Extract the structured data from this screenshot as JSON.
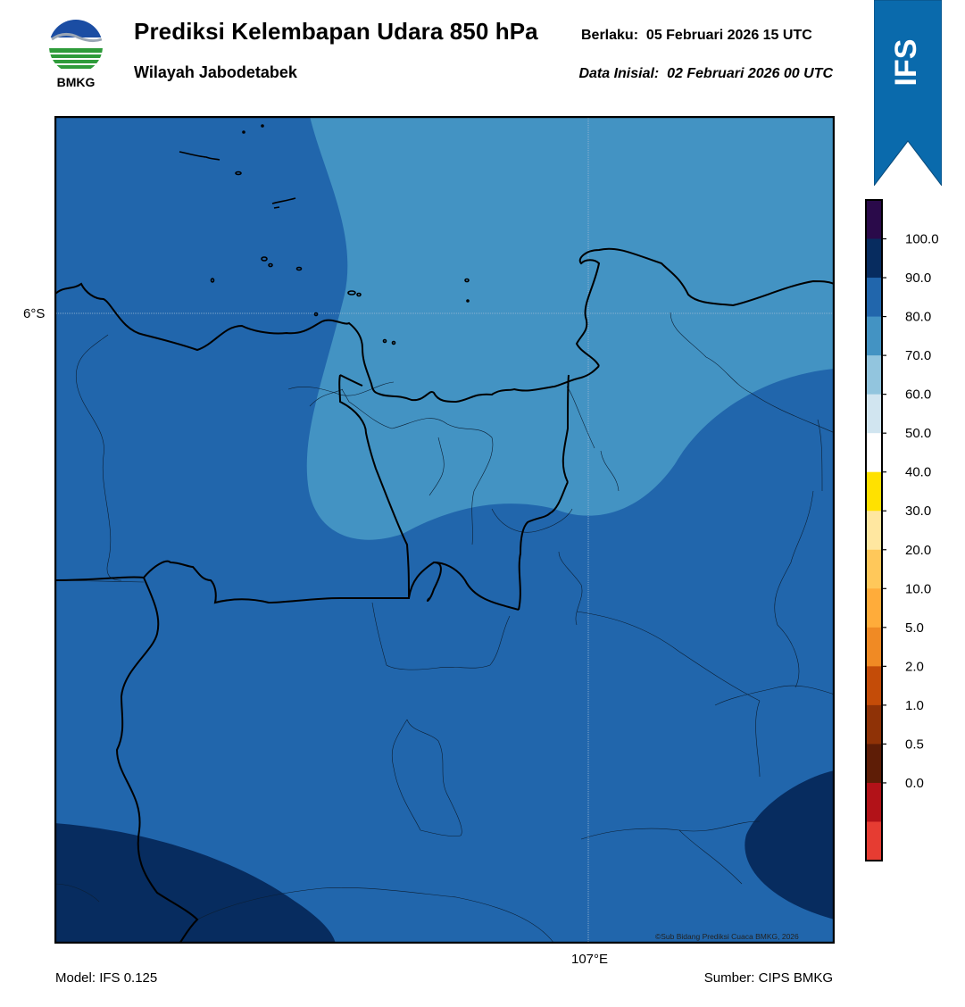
{
  "header": {
    "logo_text": "BMKG",
    "title": "Prediksi Kelembapan Udara 850 hPa",
    "subtitle": "Wilayah Jabodetabek",
    "valid_label": "Berlaku:  05 Februari 2026 15 UTC",
    "init_label": "Data Inisial:  02 Februari 2026 00 UTC",
    "badge": "IFS"
  },
  "map": {
    "variable": "Relative humidity 850 hPa (%)",
    "lat_tick": "6°S",
    "lon_tick": "107°E",
    "copyright": "©Sub Bidang Prediksi Cuaca BMKG, 2026",
    "fill_colors": {
      "70_80": "#4393c3",
      "80_90": "#2166ac",
      "90_100": "#072c5f"
    }
  },
  "colorbar": {
    "labels": [
      "100.0",
      "90.0",
      "80.0",
      "70.0",
      "60.0",
      "50.0",
      "40.0",
      "30.0",
      "20.0",
      "10.0",
      "5.0",
      "2.0",
      "1.0",
      "0.5",
      "0.0"
    ],
    "colors": [
      "#2a0a4a",
      "#072c5f",
      "#2166ac",
      "#4393c3",
      "#92c5de",
      "#d1e5f0",
      "#ffffff",
      "#ffe100",
      "#ffe7a0",
      "#ffc85a",
      "#ffac3a",
      "#f08a24",
      "#c44c08",
      "#8f3206",
      "#5e1d06",
      "#b21218",
      "#e63c32"
    ]
  },
  "footer": {
    "model": "Model: IFS 0.125",
    "source": "Sumber: CIPS BMKG"
  }
}
